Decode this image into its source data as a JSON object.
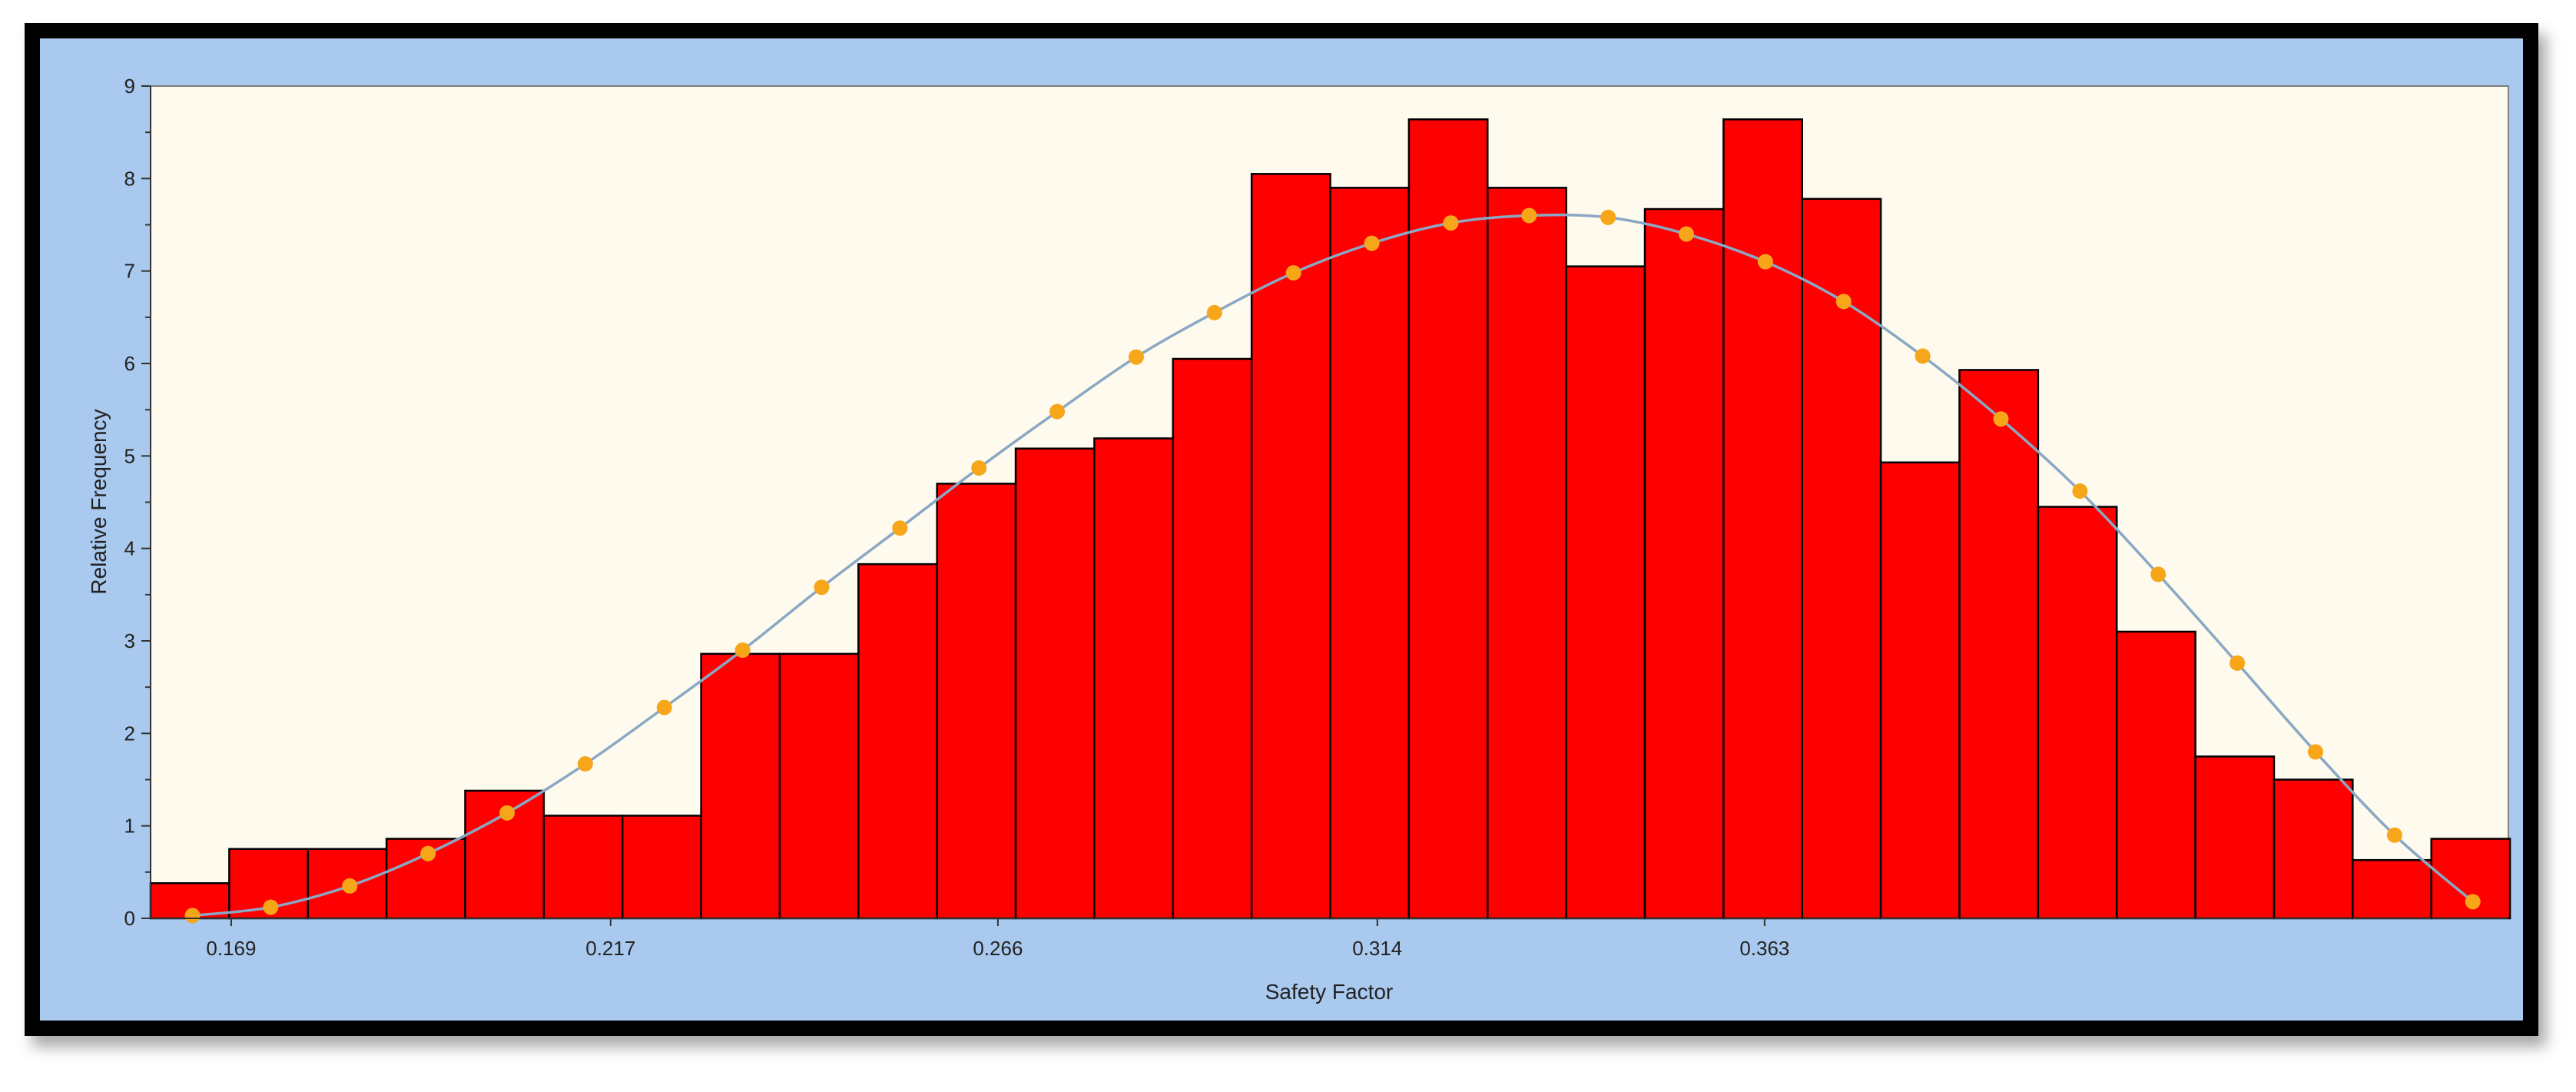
{
  "chart_data": {
    "type": "bar",
    "xlabel": "Safety Factor",
    "ylabel": "Relative Frequency",
    "ylim": [
      0,
      9
    ],
    "yticks": [
      0,
      1,
      2,
      3,
      4,
      5,
      6,
      7,
      8,
      9
    ],
    "xlim": [
      0.1588,
      0.4571
    ],
    "xticks": [
      {
        "value": 0.169,
        "label": "0.169"
      },
      {
        "value": 0.217,
        "label": "0.217"
      },
      {
        "value": 0.266,
        "label": "0.266"
      },
      {
        "value": 0.314,
        "label": "0.314"
      },
      {
        "value": 0.363,
        "label": "0.363"
      }
    ],
    "bin_width": 0.00995,
    "bins_start": 0.1588,
    "bars": [
      0.38,
      0.75,
      0.75,
      0.86,
      1.38,
      1.11,
      1.11,
      2.86,
      2.86,
      3.83,
      4.7,
      5.08,
      5.19,
      6.05,
      8.05,
      7.9,
      8.64,
      7.9,
      7.05,
      7.67,
      8.64,
      7.78,
      4.93,
      5.93,
      4.45,
      3.1,
      1.75,
      1.5,
      0.63,
      0.86
    ],
    "fit_curve": {
      "x": [
        0.1641,
        0.174,
        0.184,
        0.1939,
        0.2039,
        0.2138,
        0.2238,
        0.2337,
        0.2437,
        0.2536,
        0.2636,
        0.2735,
        0.2835,
        0.2934,
        0.3034,
        0.3133,
        0.3233,
        0.3332,
        0.3432,
        0.3531,
        0.3631,
        0.373,
        0.383,
        0.3929,
        0.4029,
        0.4128,
        0.4228,
        0.4327,
        0.4427,
        0.4526
      ],
      "y": [
        0.03,
        0.12,
        0.35,
        0.7,
        1.14,
        1.67,
        2.28,
        2.9,
        3.58,
        4.22,
        4.87,
        5.48,
        6.07,
        6.55,
        6.98,
        7.3,
        7.52,
        7.6,
        7.58,
        7.4,
        7.1,
        6.67,
        6.08,
        5.4,
        4.62,
        3.72,
        2.76,
        1.8,
        0.9,
        0.18
      ]
    },
    "colors": {
      "bar": "#ff0000",
      "bar_edge": "#000000",
      "plot_bg": "#fefaee",
      "curve": "#8aa8c4",
      "marker": "#f8a619"
    }
  }
}
